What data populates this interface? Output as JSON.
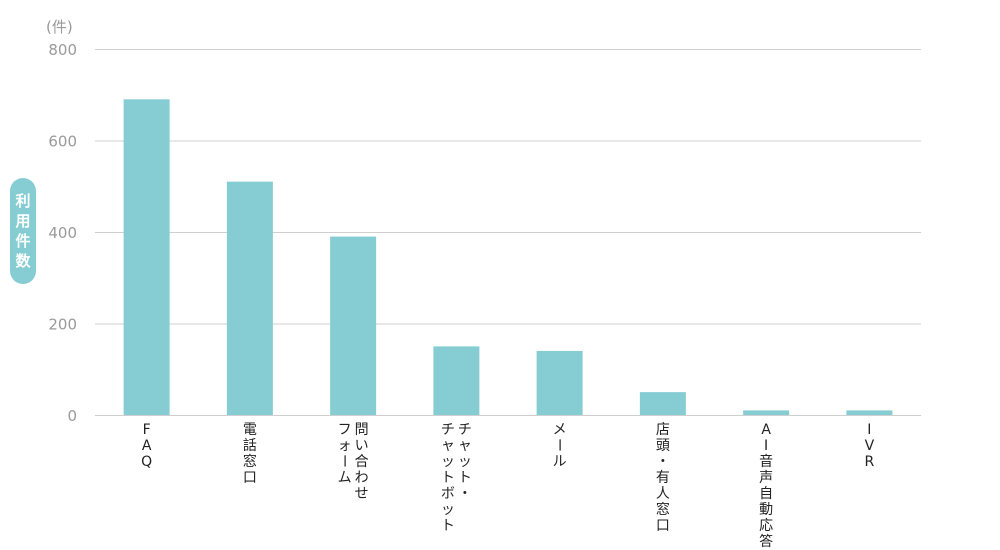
{
  "chart_data": {
    "type": "bar",
    "unit_label": "(件)",
    "ylabel": "利用件数",
    "ylim": [
      0,
      800
    ],
    "yticks": [
      0,
      200,
      400,
      600,
      800
    ],
    "grid": true,
    "colors": {
      "bar": "#85cdd2",
      "grid": "#cfcfcf",
      "ytick": "#9a9a9a"
    },
    "categories": [
      [
        "FAQ"
      ],
      [
        "電話窓口"
      ],
      [
        "問い合わせ",
        "フォーム"
      ],
      [
        "チャット・",
        "チャットボット"
      ],
      [
        "メール"
      ],
      [
        "店頭・有人窓口"
      ],
      [
        "AI音声自動応答"
      ],
      [
        "IVR"
      ]
    ],
    "values": [
      690,
      510,
      390,
      150,
      140,
      50,
      10,
      10
    ]
  }
}
